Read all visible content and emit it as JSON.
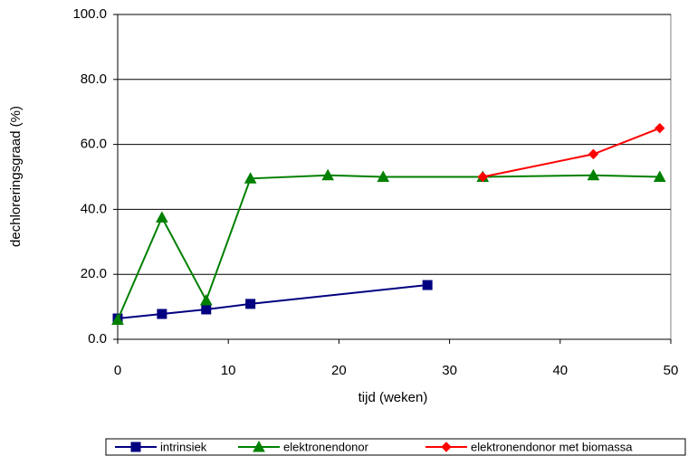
{
  "chart_data": {
    "type": "line",
    "x_label": "tijd (weken)",
    "y_label": "dechloreringsgraad (%)",
    "xlim": [
      0,
      50
    ],
    "xticks": [
      0,
      10,
      20,
      30,
      40,
      50
    ],
    "ylim": [
      0,
      100
    ],
    "yticks": [
      {
        "value": 0,
        "label": "0.0"
      },
      {
        "value": 20,
        "label": "20.0"
      },
      {
        "value": 40,
        "label": "40.0"
      },
      {
        "value": 60,
        "label": "60.0"
      },
      {
        "value": 80,
        "label": "80.0"
      },
      {
        "value": 100,
        "label": "100.0"
      }
    ],
    "grid": true,
    "legend": "bottom",
    "series": [
      {
        "name": "intrinsiek",
        "color": "#000080",
        "marker": "square",
        "x": [
          0,
          4,
          8,
          12,
          28
        ],
        "values": [
          6.4,
          7.8,
          9.2,
          10.9,
          16.7
        ]
      },
      {
        "name": "elektronendonor",
        "color": "#008000",
        "marker": "triangle",
        "x": [
          0,
          4,
          8,
          12,
          19,
          24,
          33,
          43,
          49
        ],
        "values": [
          6,
          37.5,
          12,
          49.5,
          50.5,
          50,
          50,
          50.5,
          50
        ]
      },
      {
        "name": "elektronendonor met biomassa",
        "color": "#ff0000",
        "marker": "diamond",
        "x": [
          33,
          43,
          49
        ],
        "values": [
          50,
          57,
          65
        ]
      }
    ]
  }
}
